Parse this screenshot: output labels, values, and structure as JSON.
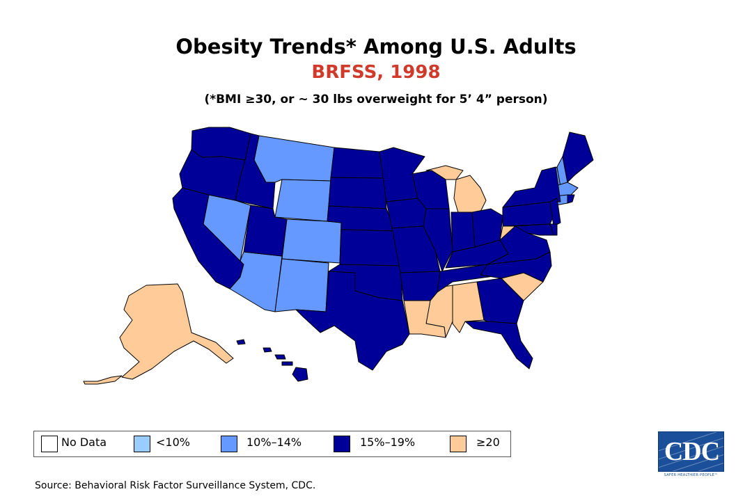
{
  "title": "Obesity Trends* Among U.S. Adults",
  "subtitle": "BRFSS, 1998",
  "note": "(*BMI ≥30, or ~ 30 lbs overweight for 5’ 4” person)",
  "legend": [
    {
      "label": "No Data",
      "color": "#ffffff"
    },
    {
      "label": "<10%",
      "color": "#99ccff"
    },
    {
      "label": "10%–14%",
      "color": "#6699ff"
    },
    {
      "label": "15%–19%",
      "color": "#000099"
    },
    {
      "label": "≥20",
      "color": "#ffcc99"
    }
  ],
  "categories": {
    "orange": [
      "AK",
      "MI",
      "WV",
      "SC",
      "MS",
      "AL",
      "LA"
    ],
    "lightblue": [
      "MT",
      "WY",
      "NV",
      "AZ",
      "CO",
      "NM",
      "VT",
      "NH",
      "MA",
      "CT"
    ],
    "darkblue": [
      "WA",
      "OR",
      "ID",
      "CA",
      "UT",
      "ND",
      "SD",
      "NE",
      "KS",
      "OK",
      "TX",
      "MN",
      "IA",
      "MO",
      "AR",
      "WI",
      "IL",
      "IN",
      "OH",
      "KY",
      "TN",
      "GA",
      "FL",
      "NC",
      "VA",
      "PA",
      "NY",
      "ME",
      "NJ",
      "DE",
      "MD",
      "RI",
      "HI"
    ]
  },
  "source": "Source: Behavioral Risk Factor Surveillance System, CDC.",
  "logo": {
    "text": "CDC",
    "tagline": "SAFER·HEALTHIER·PEOPLE™"
  }
}
